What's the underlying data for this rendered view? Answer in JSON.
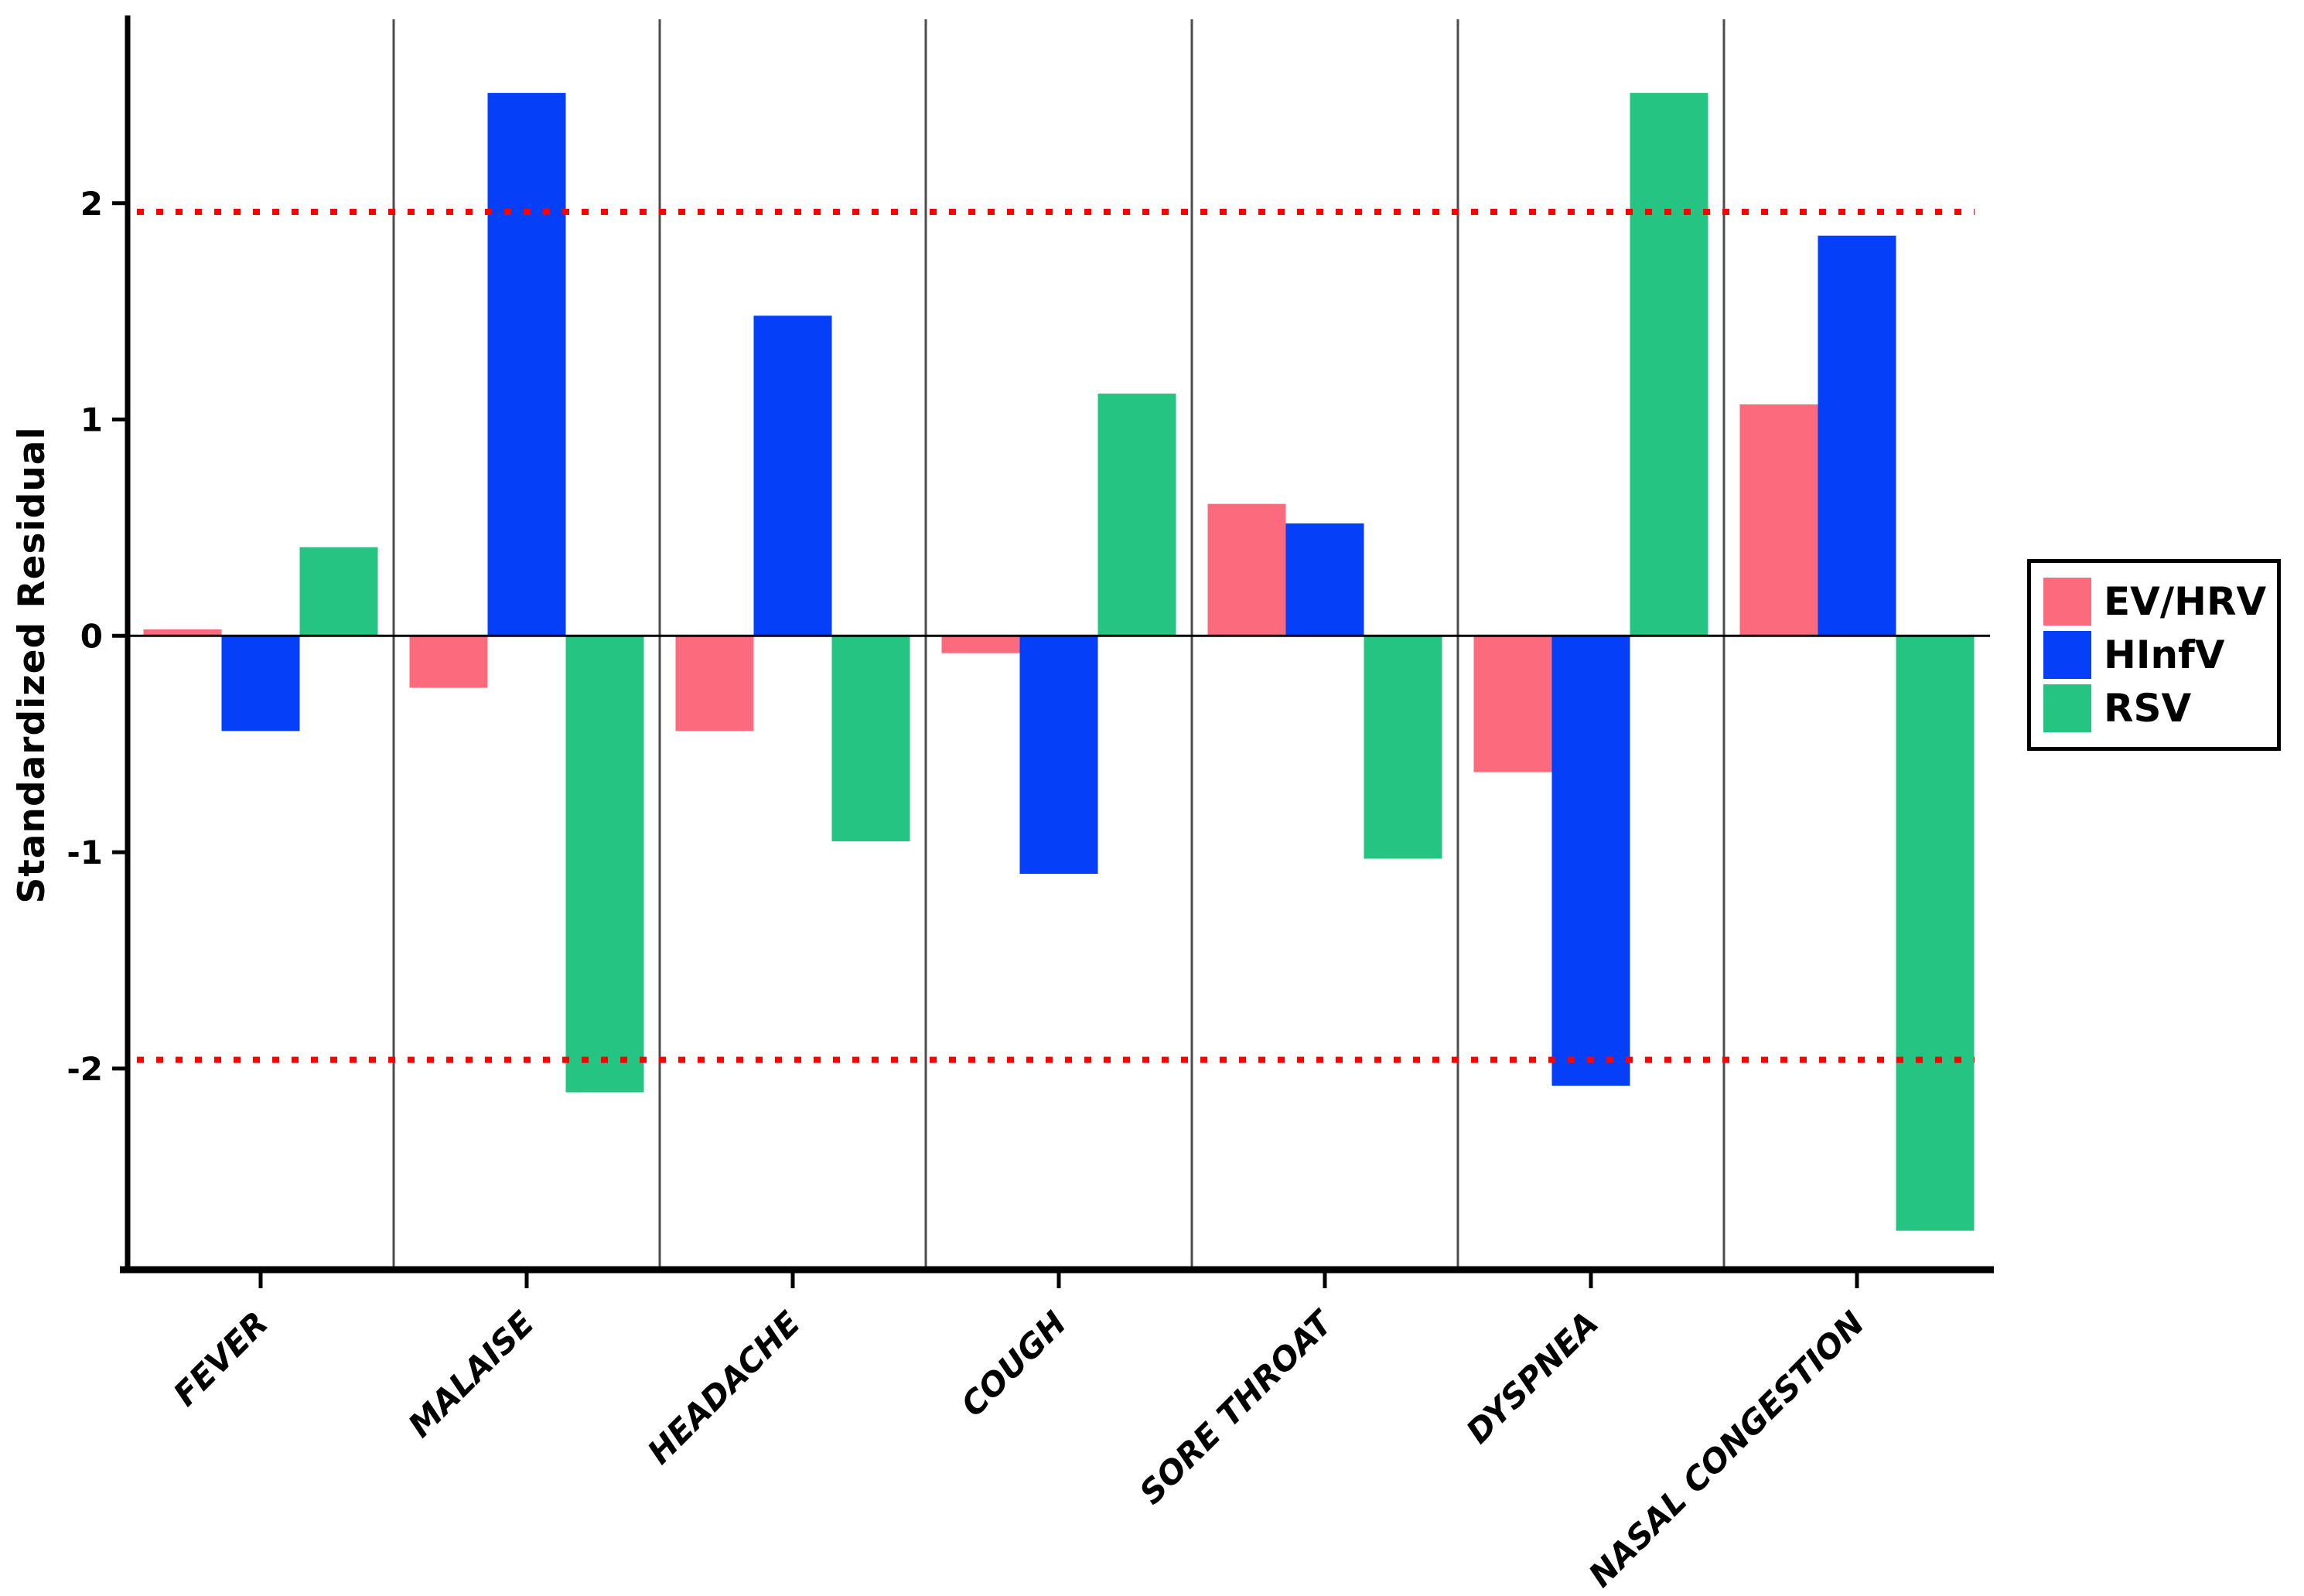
{
  "chart_data": {
    "type": "bar",
    "title": "",
    "ylabel": "Standardized Residual",
    "xlabel": "",
    "categories": [
      "FEVER",
      "MALAISE",
      "HEADACHE",
      "COUGH",
      "SORE THROAT",
      "DYSPNEA",
      "NASAL CONGESTION"
    ],
    "series": [
      {
        "name": "EV/HRV",
        "color": "#FB6A7D",
        "values": [
          0.03,
          -0.24,
          -0.44,
          -0.08,
          0.61,
          -0.63,
          1.07
        ]
      },
      {
        "name": "HInfV",
        "color": "#0540F8",
        "values": [
          -0.44,
          2.51,
          1.48,
          -1.1,
          0.52,
          -2.08,
          1.85
        ]
      },
      {
        "name": "RSV",
        "color": "#25C483",
        "values": [
          0.41,
          -2.11,
          -0.95,
          1.12,
          -1.03,
          2.51,
          -2.75
        ]
      }
    ],
    "yticks": [
      -2,
      -1,
      0,
      1,
      2
    ],
    "ylim": [
      -2.93,
      2.85
    ],
    "reference_lines": {
      "values": [
        1.96,
        -1.96
      ],
      "color": "#FE0000",
      "style": "dotted"
    },
    "zero_line_color": "#000000",
    "separator_color": "#4D4D4D",
    "axis_color": "#000000",
    "legend_position": "right",
    "grid": "vertical category separators only",
    "bar_grouping": "grouped, 3 bars per category"
  }
}
